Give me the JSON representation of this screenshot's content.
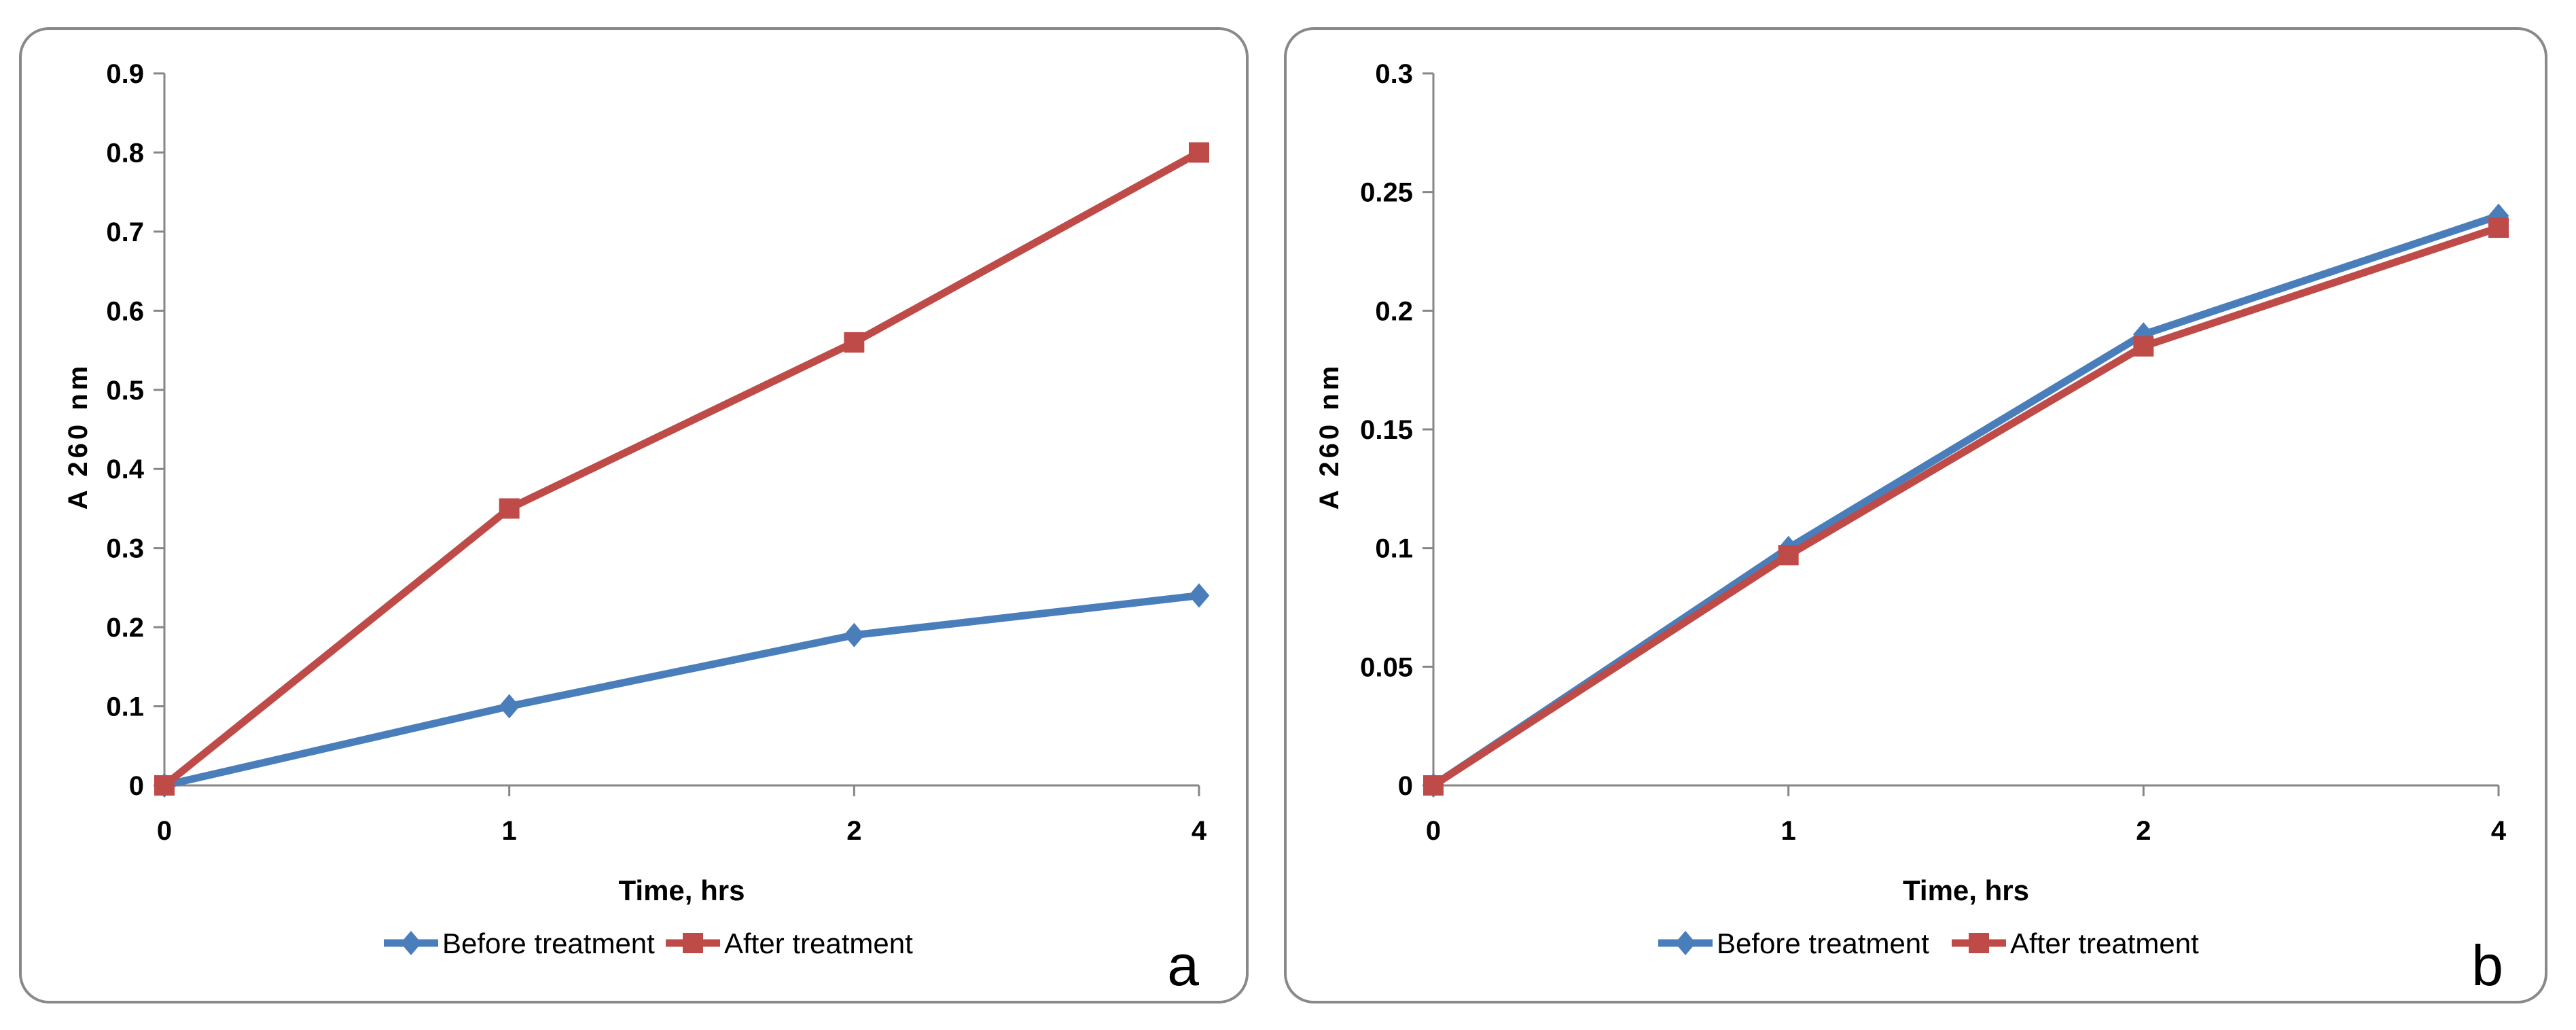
{
  "colors": {
    "before": "#4A7EBB",
    "after": "#BE4B48",
    "frame": "#898989",
    "axis": "#868686",
    "text": "#000000",
    "background": "#ffffff"
  },
  "chart_data": [
    {
      "panel_label": "a",
      "type": "line",
      "categories": [
        "0",
        "1",
        "2",
        "4"
      ],
      "series": [
        {
          "name": "Before treatment",
          "marker": "diamond",
          "values": [
            0,
            0.1,
            0.19,
            0.24
          ]
        },
        {
          "name": "After treatment",
          "marker": "square",
          "values": [
            0,
            0.35,
            0.56,
            0.8
          ]
        }
      ],
      "title": "",
      "xlabel": "Time, hrs",
      "ylabel": "A 260  nm",
      "ylim": [
        0,
        0.9
      ],
      "yticks": [
        "0",
        "0.1",
        "0.2",
        "0.3",
        "0.4",
        "0.5",
        "0.6",
        "0.7",
        "0.8",
        "0.9"
      ],
      "grid": false,
      "legend": "bottom"
    },
    {
      "panel_label": "b",
      "type": "line",
      "categories": [
        "0",
        "1",
        "2",
        "4"
      ],
      "series": [
        {
          "name": "Before treatment",
          "marker": "diamond",
          "values": [
            0,
            0.1,
            0.19,
            0.24
          ]
        },
        {
          "name": "After treatment",
          "marker": "square",
          "values": [
            0,
            0.097,
            0.185,
            0.235
          ]
        }
      ],
      "title": "",
      "xlabel": "Time, hrs",
      "ylabel": "A 260  nm",
      "ylim": [
        0,
        0.3
      ],
      "yticks": [
        "0",
        "0.05",
        "0.1",
        "0.15",
        "0.2",
        "0.25",
        "0.3"
      ],
      "grid": false,
      "legend": "bottom"
    }
  ]
}
